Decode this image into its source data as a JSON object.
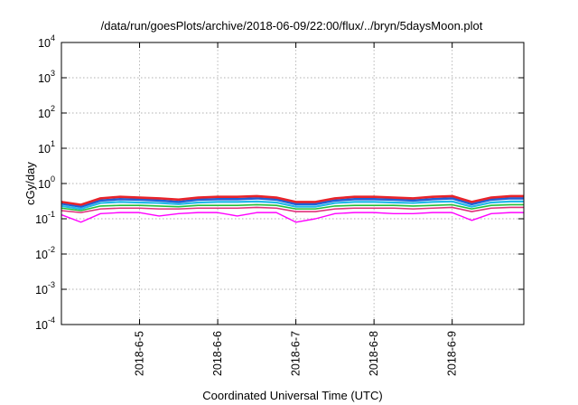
{
  "chart_data": {
    "type": "line",
    "title": "/data/run/goesPlots/archive/2018-06-09/22:00/flux/../bryn/5daysMoon.plot",
    "xlabel": "Coordinated Universal Time (UTC)",
    "ylabel": "cGy/day",
    "yscale": "log",
    "ylim": [
      0.0001,
      10000
    ],
    "yticks": [
      {
        "base": "10",
        "exp": "-4",
        "value": 0.0001
      },
      {
        "base": "10",
        "exp": "-3",
        "value": 0.001
      },
      {
        "base": "10",
        "exp": "-2",
        "value": 0.01
      },
      {
        "base": "10",
        "exp": "-1",
        "value": 0.1
      },
      {
        "base": "10",
        "exp": "0",
        "value": 1
      },
      {
        "base": "10",
        "exp": "1",
        "value": 10
      },
      {
        "base": "10",
        "exp": "2",
        "value": 100
      },
      {
        "base": "10",
        "exp": "3",
        "value": 1000
      },
      {
        "base": "10",
        "exp": "4",
        "value": 10000
      }
    ],
    "xlim": [
      "2018-06-04 00:00",
      "2018-06-09 22:00"
    ],
    "xticks": [
      "2018-6-5",
      "2018-6-6",
      "2018-6-7",
      "2018-6-8",
      "2018-6-9"
    ],
    "grid": true,
    "legend": "none",
    "x": [
      "2018-06-04 00:00",
      "2018-06-04 06:00",
      "2018-06-04 12:00",
      "2018-06-04 18:00",
      "2018-06-05 00:00",
      "2018-06-05 06:00",
      "2018-06-05 12:00",
      "2018-06-05 18:00",
      "2018-06-06 00:00",
      "2018-06-06 06:00",
      "2018-06-06 12:00",
      "2018-06-06 18:00",
      "2018-06-07 00:00",
      "2018-06-07 06:00",
      "2018-06-07 12:00",
      "2018-06-07 18:00",
      "2018-06-08 00:00",
      "2018-06-08 06:00",
      "2018-06-08 12:00",
      "2018-06-08 18:00",
      "2018-06-09 00:00",
      "2018-06-09 06:00",
      "2018-06-09 12:00",
      "2018-06-09 18:00",
      "2018-06-09 22:00"
    ],
    "series": [
      {
        "color": "#e8232a",
        "width": 2.6,
        "values": [
          0.3,
          0.25,
          0.38,
          0.42,
          0.4,
          0.38,
          0.35,
          0.4,
          0.42,
          0.42,
          0.44,
          0.4,
          0.3,
          0.3,
          0.38,
          0.42,
          0.42,
          0.4,
          0.38,
          0.42,
          0.44,
          0.3,
          0.4,
          0.44,
          0.44
        ]
      },
      {
        "color": "#1f5fd6",
        "width": 2.6,
        "values": [
          0.27,
          0.22,
          0.33,
          0.36,
          0.35,
          0.33,
          0.3,
          0.35,
          0.36,
          0.36,
          0.38,
          0.35,
          0.26,
          0.26,
          0.33,
          0.36,
          0.36,
          0.35,
          0.33,
          0.36,
          0.38,
          0.26,
          0.35,
          0.38,
          0.38
        ]
      },
      {
        "color": "#22b8e8",
        "width": 2.2,
        "values": [
          0.23,
          0.19,
          0.28,
          0.3,
          0.29,
          0.28,
          0.26,
          0.29,
          0.3,
          0.3,
          0.31,
          0.29,
          0.22,
          0.22,
          0.28,
          0.3,
          0.3,
          0.29,
          0.28,
          0.3,
          0.31,
          0.22,
          0.29,
          0.31,
          0.31
        ]
      },
      {
        "color": "#22c03a",
        "width": 1.6,
        "values": [
          0.2,
          0.17,
          0.23,
          0.24,
          0.24,
          0.23,
          0.22,
          0.24,
          0.24,
          0.24,
          0.25,
          0.24,
          0.19,
          0.19,
          0.23,
          0.24,
          0.24,
          0.24,
          0.23,
          0.24,
          0.25,
          0.19,
          0.24,
          0.25,
          0.25
        ]
      },
      {
        "color": "#e0307a",
        "width": 1.6,
        "values": [
          0.17,
          0.15,
          0.19,
          0.2,
          0.2,
          0.19,
          0.19,
          0.2,
          0.2,
          0.2,
          0.21,
          0.2,
          0.16,
          0.16,
          0.19,
          0.2,
          0.2,
          0.2,
          0.19,
          0.2,
          0.21,
          0.16,
          0.2,
          0.21,
          0.21
        ]
      },
      {
        "color": "#ff00ff",
        "width": 1.4,
        "values": [
          0.13,
          0.08,
          0.14,
          0.15,
          0.15,
          0.12,
          0.14,
          0.15,
          0.15,
          0.12,
          0.15,
          0.15,
          0.08,
          0.1,
          0.14,
          0.15,
          0.15,
          0.14,
          0.14,
          0.15,
          0.15,
          0.09,
          0.14,
          0.15,
          0.15
        ]
      }
    ]
  }
}
